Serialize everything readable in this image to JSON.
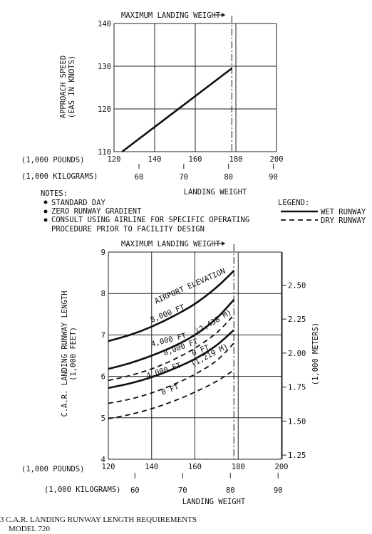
{
  "notes": {
    "heading": "NOTES:",
    "items": [
      "STANDARD DAY",
      "ZERO RUNWAY GRADIENT",
      "CONSULT USING AIRLINE FOR SPECIFIC OPERATING",
      "PROCEDURE PRIOR TO FACILITY DESIGN"
    ]
  },
  "legend": {
    "heading": "LEGEND:",
    "wet": "WET RUNWAY",
    "dry": "DRY RUNWAY"
  },
  "caption": {
    "line1": "3  C.A.R. LANDING RUNWAY LENGTH REQUIREMENTS",
    "line2": "MODEL 720"
  },
  "chart_data": [
    {
      "type": "line",
      "annotation": "MAXIMUM LANDING WEIGHT",
      "max_landing_weight": 178,
      "ylabel_lines": [
        "APPROACH SPEED",
        "(EAS IN KNOTS)"
      ],
      "xlabel": "LANDING WEIGHT",
      "x_unit_primary": "(1,000 POUNDS)",
      "x_unit_secondary": "(1,000 KILOGRAMS)",
      "xlim": [
        120,
        200
      ],
      "ylim": [
        110,
        140
      ],
      "x_ticks": [
        "120",
        "140",
        "160",
        "180",
        "200"
      ],
      "x_ticks_secondary": [
        "60",
        "70",
        "80",
        "90"
      ],
      "x_ticks_secondary_values": [
        60,
        70,
        80,
        90
      ],
      "y_ticks": [
        "110",
        "120",
        "130",
        "140"
      ],
      "grid": true,
      "series": [
        {
          "x": [
            124,
            178
          ],
          "y": [
            110,
            129.5
          ]
        }
      ]
    },
    {
      "type": "line",
      "annotation": "MAXIMUM LANDING WEIGHT",
      "max_landing_weight": 178,
      "ylabel_lines": [
        "C.A.R. LANDING RUNWAY LENGTH",
        "(1,000 FEET)"
      ],
      "ylabel_right": "(1,000 METERS)",
      "xlabel": "LANDING WEIGHT",
      "x_unit_primary": "(1,000 POUNDS)",
      "x_unit_secondary": "(1,000 KILOGRAMS)",
      "xlim": [
        120,
        200
      ],
      "ylim": [
        4,
        9
      ],
      "x_ticks": [
        "120",
        "140",
        "160",
        "180",
        "200"
      ],
      "x_ticks_secondary": [
        "60",
        "70",
        "80",
        "90"
      ],
      "x_ticks_secondary_values": [
        60,
        70,
        80,
        90
      ],
      "y_ticks": [
        "4",
        "5",
        "6",
        "7",
        "8",
        "9"
      ],
      "y_ticks_right": [
        "1.25",
        "1.50",
        "1.75",
        "2.00",
        "2.25",
        "2.50"
      ],
      "y_ticks_right_values": [
        1.25,
        1.5,
        1.75,
        2.0,
        2.25,
        2.5
      ],
      "grid": true,
      "series": [
        {
          "style": "wet",
          "x": [
            120,
            130,
            140,
            150,
            160,
            170,
            178
          ],
          "y": [
            6.85,
            7.0,
            7.2,
            7.45,
            7.75,
            8.15,
            8.55
          ]
        },
        {
          "style": "wet",
          "x": [
            120,
            130,
            140,
            150,
            160,
            170,
            178
          ],
          "y": [
            6.18,
            6.32,
            6.5,
            6.72,
            7.0,
            7.4,
            7.85
          ]
        },
        {
          "style": "dry",
          "x": [
            120,
            130,
            140,
            150,
            160,
            170,
            178
          ],
          "y": [
            5.9,
            6.02,
            6.18,
            6.4,
            6.68,
            7.05,
            7.48
          ]
        },
        {
          "style": "wet",
          "x": [
            120,
            130,
            140,
            150,
            160,
            170,
            178
          ],
          "y": [
            5.72,
            5.83,
            5.98,
            6.18,
            6.42,
            6.75,
            7.12
          ]
        },
        {
          "style": "dry",
          "x": [
            120,
            130,
            140,
            150,
            160,
            170,
            178
          ],
          "y": [
            5.35,
            5.45,
            5.6,
            5.8,
            6.05,
            6.38,
            6.8
          ]
        },
        {
          "style": "dry",
          "x": [
            120,
            130,
            140,
            150,
            160,
            170,
            178
          ],
          "y": [
            4.98,
            5.08,
            5.22,
            5.4,
            5.62,
            5.88,
            6.15
          ]
        }
      ],
      "curve_labels": [
        {
          "text": "AIRPORT ELEVATION",
          "x": 142,
          "y": 7.75,
          "angle": -24
        },
        {
          "text": "8,000 FT",
          "x": 140,
          "y": 7.3,
          "angle": -22
        },
        {
          "text": "4,000 FT",
          "x": 140,
          "y": 6.72,
          "angle": -14
        },
        {
          "text": "(2,438 M)",
          "x": 161,
          "y": 7.02,
          "angle": -30
        },
        {
          "text": "8,000 FT",
          "x": 146,
          "y": 6.5,
          "angle": -20
        },
        {
          "text": "0 FT",
          "x": 159,
          "y": 6.5,
          "angle": -20
        },
        {
          "text": "4,000 FT",
          "x": 138,
          "y": 5.95,
          "angle": -18
        },
        {
          "text": "(1,219 M)",
          "x": 159,
          "y": 6.23,
          "angle": -28
        },
        {
          "text": "0 FT",
          "x": 145,
          "y": 5.55,
          "angle": -20
        }
      ]
    }
  ]
}
